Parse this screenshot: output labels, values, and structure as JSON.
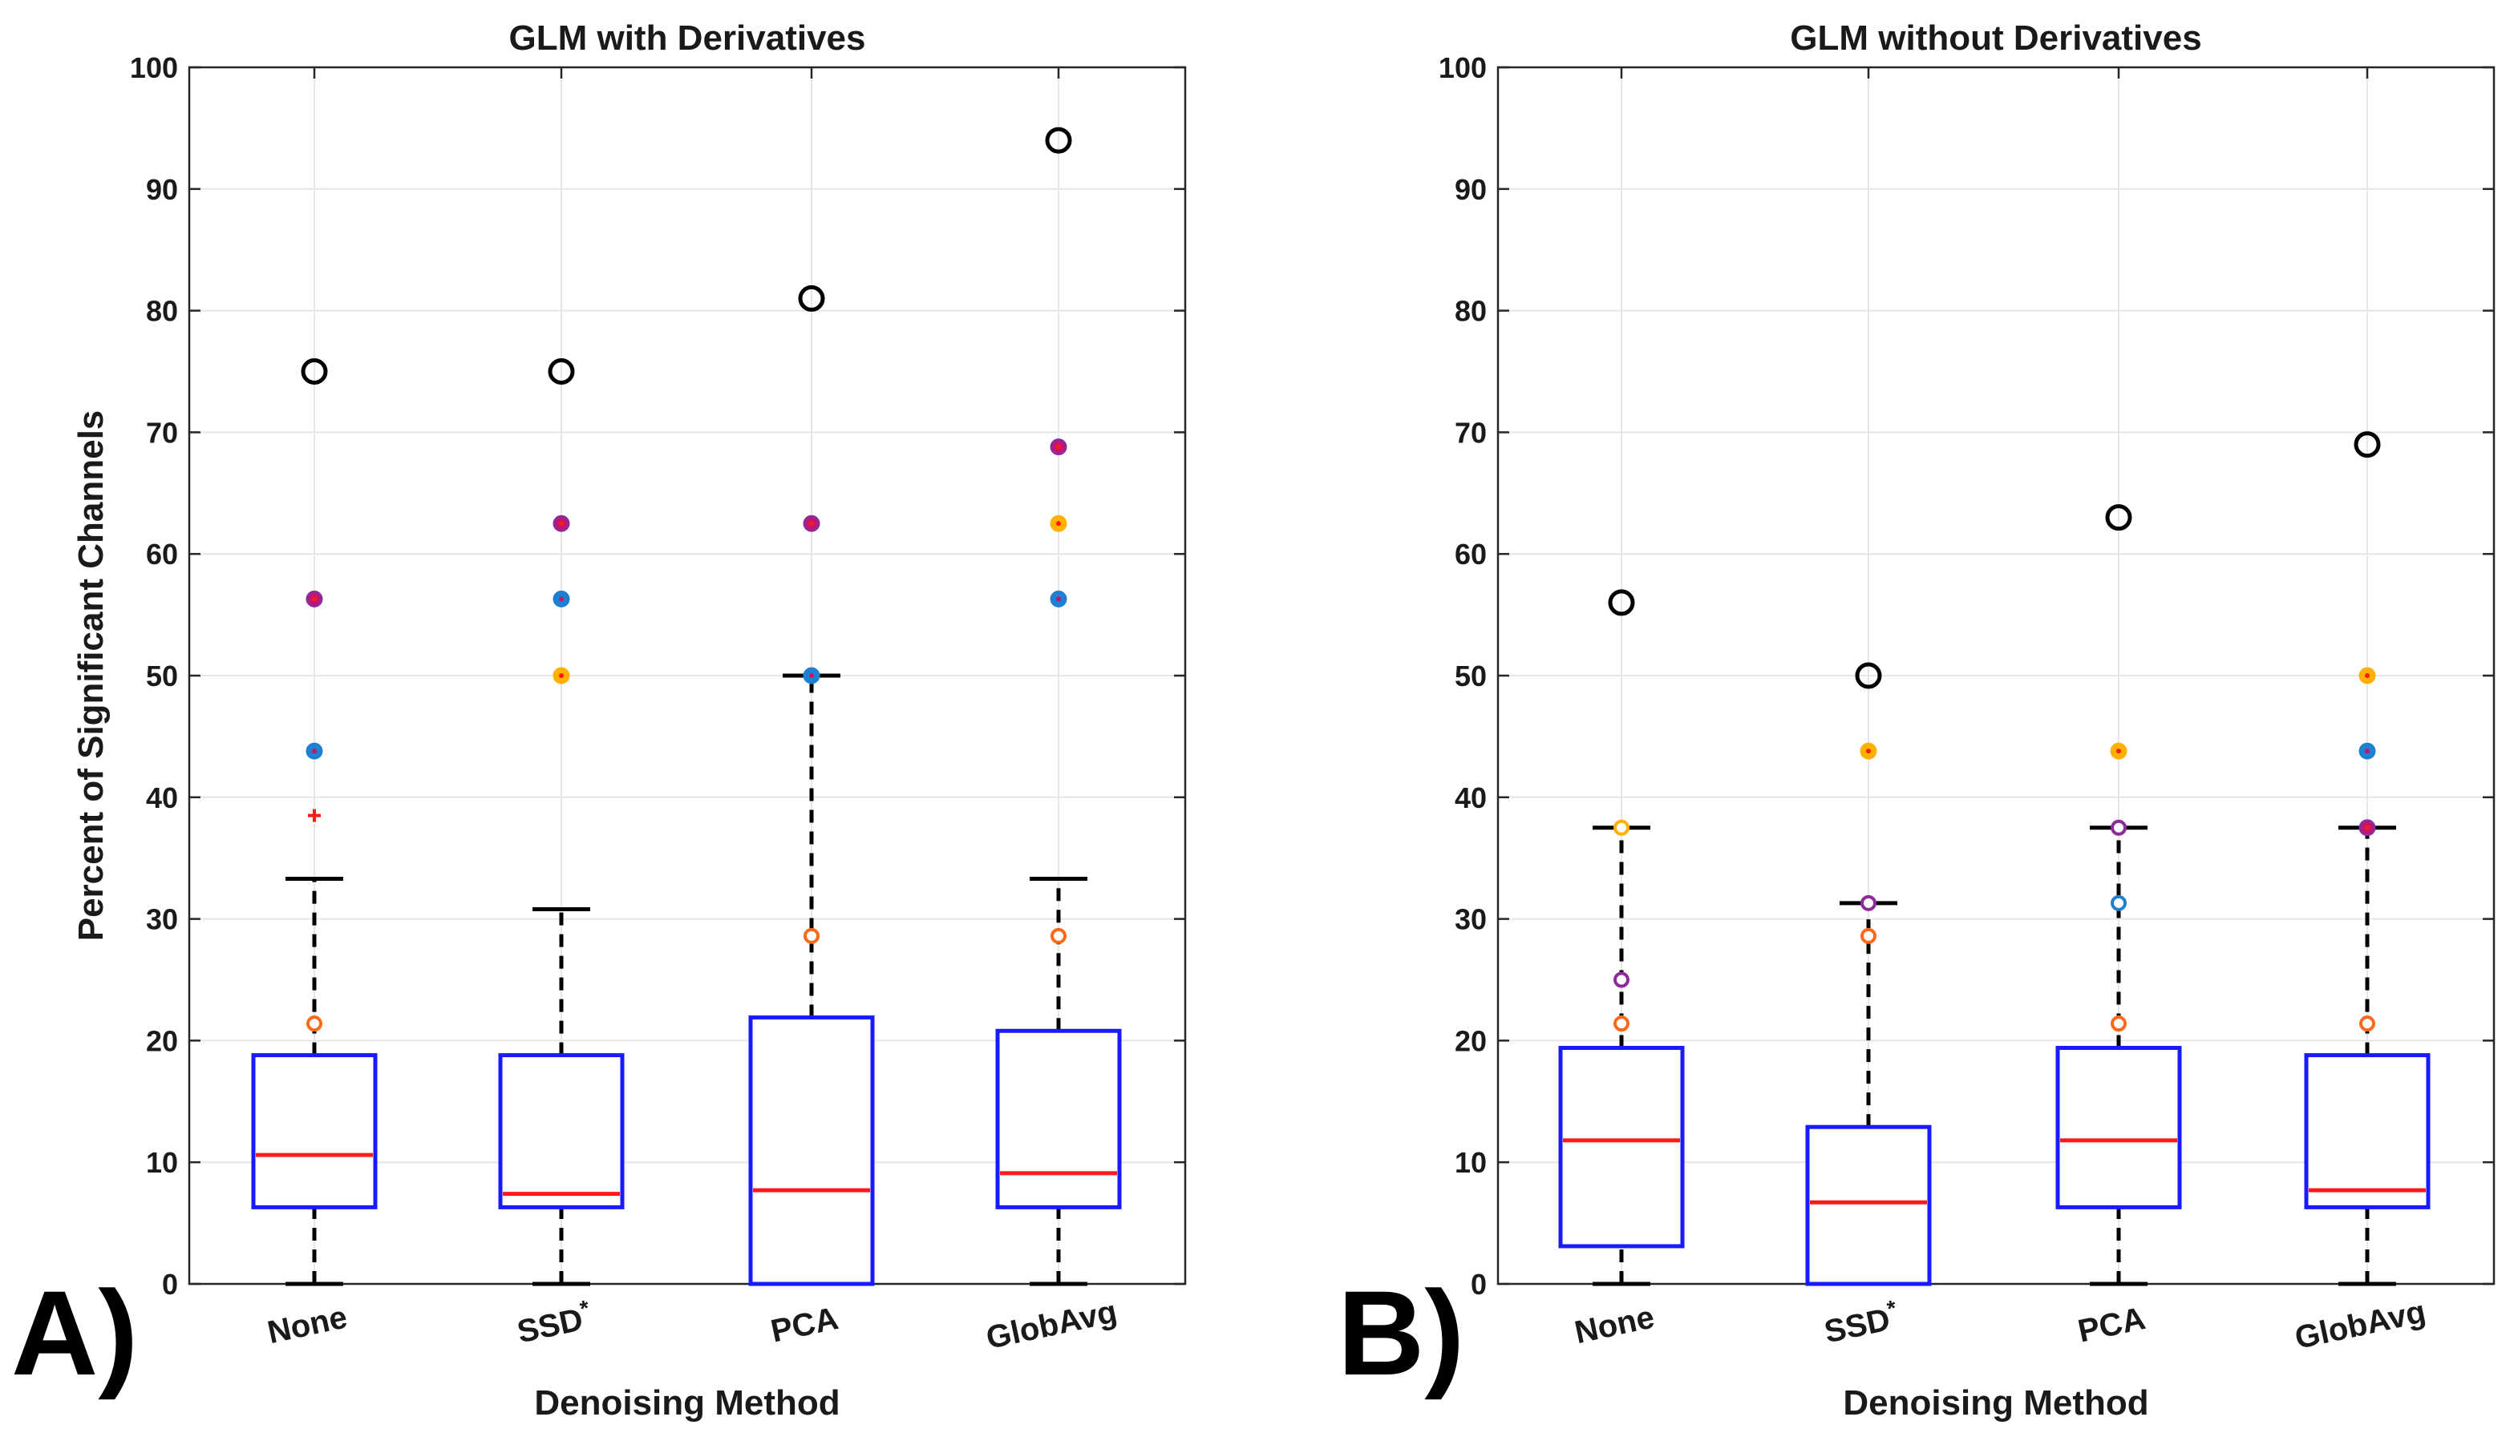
{
  "chart_data": [
    {
      "type": "boxplot",
      "panel_label": "A)",
      "title": "GLM with Derivatives",
      "xlabel": "Denoising Method",
      "ylabel": "Percent of Significant Channels",
      "ylim": [
        0,
        100
      ],
      "yticks": [
        "0",
        "10",
        "20",
        "30",
        "40",
        "50",
        "60",
        "70",
        "80",
        "90",
        "100"
      ],
      "grid": true,
      "categories": [
        {
          "label": "None",
          "sup": ""
        },
        {
          "label": "SSD",
          "sup": "*"
        },
        {
          "label": "PCA",
          "sup": ""
        },
        {
          "label": "GlobAvg",
          "sup": ""
        }
      ],
      "boxes": [
        {
          "min": 0,
          "q1": 6.3,
          "median": 10.6,
          "q3": 18.8,
          "max": 33.3
        },
        {
          "min": 0,
          "q1": 6.3,
          "median": 7.4,
          "q3": 18.8,
          "max": 30.8
        },
        {
          "min": 0,
          "q1": 0,
          "median": 7.7,
          "q3": 21.9,
          "max": 50
        },
        {
          "min": 0,
          "q1": 6.3,
          "median": 9.1,
          "q3": 20.8,
          "max": 33.3
        }
      ],
      "outliers": [
        [
          {
            "value": 75,
            "style": "large"
          },
          {
            "value": 56.3,
            "style": "magenta"
          },
          {
            "value": 43.8,
            "style": "blue"
          },
          {
            "value": 38.5,
            "style": "plus"
          },
          {
            "value": 21.4,
            "style": "orange"
          }
        ],
        [
          {
            "value": 75,
            "style": "large"
          },
          {
            "value": 62.5,
            "style": "magenta"
          },
          {
            "value": 56.3,
            "style": "blue"
          },
          {
            "value": 50,
            "style": "yellow"
          }
        ],
        [
          {
            "value": 81,
            "style": "large"
          },
          {
            "value": 62.5,
            "style": "magenta"
          },
          {
            "value": 50,
            "style": "blue"
          },
          {
            "value": 28.6,
            "style": "orange"
          }
        ],
        [
          {
            "value": 94,
            "style": "large"
          },
          {
            "value": 68.8,
            "style": "magenta"
          },
          {
            "value": 62.5,
            "style": "yellow"
          },
          {
            "value": 56.3,
            "style": "blue"
          },
          {
            "value": 28.6,
            "style": "orange"
          }
        ]
      ]
    },
    {
      "type": "boxplot",
      "panel_label": "B)",
      "title": "GLM without Derivatives",
      "xlabel": "Denoising Method",
      "ylabel": "",
      "ylim": [
        0,
        100
      ],
      "yticks": [
        "0",
        "10",
        "20",
        "30",
        "40",
        "50",
        "60",
        "70",
        "80",
        "90",
        "100"
      ],
      "grid": true,
      "categories": [
        {
          "label": "None",
          "sup": ""
        },
        {
          "label": "SSD",
          "sup": "*"
        },
        {
          "label": "PCA",
          "sup": ""
        },
        {
          "label": "GlobAvg",
          "sup": ""
        }
      ],
      "boxes": [
        {
          "min": 0,
          "q1": 3.1,
          "median": 11.8,
          "q3": 19.4,
          "max": 37.5
        },
        {
          "min": 0,
          "q1": 0,
          "median": 6.7,
          "q3": 12.9,
          "max": 31.3
        },
        {
          "min": 0,
          "q1": 6.3,
          "median": 11.8,
          "q3": 19.4,
          "max": 37.5
        },
        {
          "min": 0,
          "q1": 6.3,
          "median": 7.7,
          "q3": 18.8,
          "max": 37.5
        }
      ],
      "outliers": [
        [
          {
            "value": 56,
            "style": "large"
          },
          {
            "value": 37.5,
            "style": "yellow-ring"
          },
          {
            "value": 25,
            "style": "purple-ring"
          },
          {
            "value": 21.4,
            "style": "orange"
          }
        ],
        [
          {
            "value": 50,
            "style": "large"
          },
          {
            "value": 43.8,
            "style": "yellow"
          },
          {
            "value": 31.3,
            "style": "purple-ring"
          },
          {
            "value": 28.6,
            "style": "orange"
          }
        ],
        [
          {
            "value": 63,
            "style": "large"
          },
          {
            "value": 43.8,
            "style": "yellow"
          },
          {
            "value": 37.5,
            "style": "purple-ring"
          },
          {
            "value": 31.3,
            "style": "blue-ring"
          },
          {
            "value": 21.4,
            "style": "orange"
          }
        ],
        [
          {
            "value": 69,
            "style": "large"
          },
          {
            "value": 50,
            "style": "yellow"
          },
          {
            "value": 43.8,
            "style": "blue"
          },
          {
            "value": 37.5,
            "style": "magenta"
          },
          {
            "value": 21.4,
            "style": "orange"
          }
        ]
      ]
    }
  ],
  "colors": {
    "box": "#1a1aff",
    "median": "#ff1a1a",
    "whisker": "#000000",
    "grid": "#e6e6e6",
    "axis": "#262626",
    "outlier_orange": "#ff6a1a",
    "outlier_magenta": "#c0176e",
    "outlier_purple": "#8e2a9c",
    "outlier_blue": "#1f7fd0",
    "outlier_yellow": "#ffb000",
    "outlier_red": "#ff1a1a"
  }
}
